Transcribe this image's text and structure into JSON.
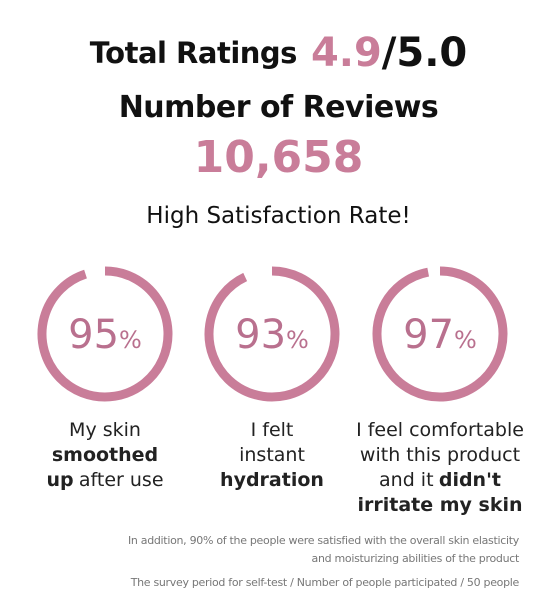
{
  "header": {
    "ratings_label": "Total Ratings",
    "rating": "4.9",
    "rating_max": "/5.0",
    "reviews_label": "Number of Reviews",
    "reviews": "10,658"
  },
  "satisfaction": {
    "title": "High Satisfaction Rate!",
    "color": "#c97d99",
    "gauges": [
      {
        "value": 95,
        "unit": "%",
        "caption": [
          [
            {
              "text": "My skin",
              "bold": false
            }
          ],
          [
            {
              "text": "smoothed",
              "bold": true
            }
          ],
          [
            {
              "text": "up",
              "bold": true
            },
            {
              "text": "after use",
              "bold": false
            }
          ]
        ]
      },
      {
        "value": 93,
        "unit": "%",
        "caption": [
          [
            {
              "text": "I felt",
              "bold": false
            }
          ],
          [
            {
              "text": "instant",
              "bold": false
            }
          ],
          [
            {
              "text": "hydration",
              "bold": true
            }
          ]
        ]
      },
      {
        "value": 97,
        "unit": "%",
        "caption": [
          [
            {
              "text": "I feel comfortable",
              "bold": false
            }
          ],
          [
            {
              "text": "with this product",
              "bold": false
            }
          ],
          [
            {
              "text": "and it",
              "bold": false
            },
            {
              "text": "didn't",
              "bold": true
            }
          ],
          [
            {
              "text": "irritate my skin",
              "bold": true
            }
          ]
        ]
      }
    ]
  },
  "notes": [
    "In addition, 90% of the people were satisfied with the overall skin elasticity",
    "and moisturizing abilities of the product",
    "The survey period for self-test / Number of people participated / 50 people"
  ]
}
